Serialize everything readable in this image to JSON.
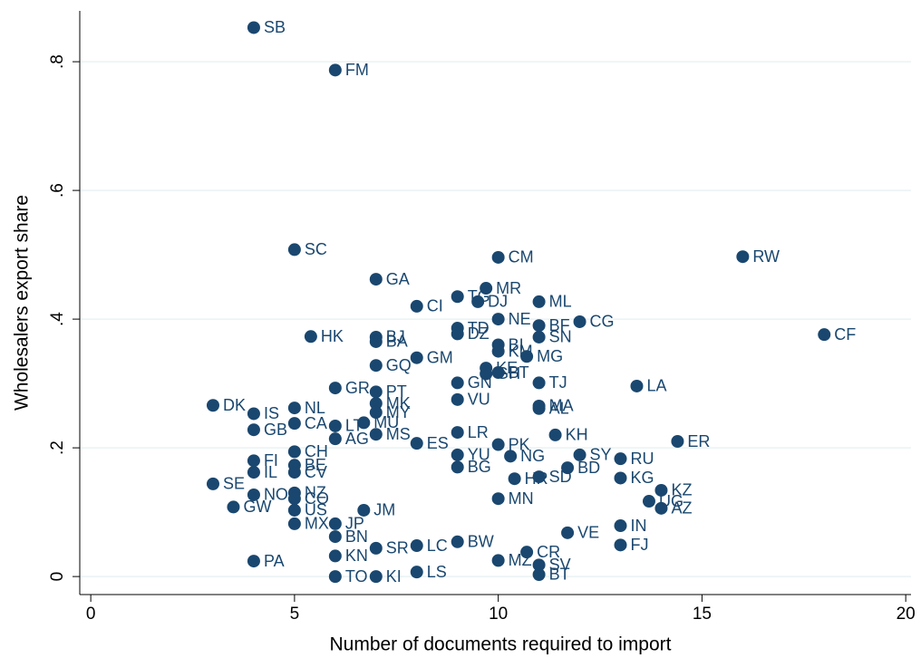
{
  "chart_data": {
    "type": "scatter",
    "x_label": "Number of documents required to import",
    "y_label": "Wholesalers export share",
    "color": "#1a476f",
    "grid": true,
    "xlim": [
      -0.27,
      20.13
    ],
    "ylim": [
      -0.028,
      0.879
    ],
    "xticks": [
      0,
      5,
      10,
      15,
      20
    ],
    "yticks": [
      0,
      {
        "value": 0.2,
        "label": ".2"
      },
      {
        "value": 0.4,
        "label": ".4"
      },
      {
        "value": 0.6,
        "label": ".6"
      },
      {
        "value": 0.8,
        "label": ".8"
      }
    ],
    "labels": [
      "SB",
      "FM",
      "SC",
      "CM",
      "RW",
      "GA",
      "MR",
      "TG",
      "CI",
      "DJ",
      "ML",
      "NE",
      "CG",
      "BF",
      "TD",
      "DZ",
      "CF",
      "HK",
      "BJ",
      "SN",
      "BA",
      "BI",
      "KM",
      "MG",
      "GM",
      "GQ",
      "KE",
      "GH",
      "BT",
      "GN",
      "TJ",
      "LA",
      "GR",
      "PT",
      "VU",
      "DK",
      "MK",
      "MA",
      "AL",
      "NL",
      "IS",
      "MY",
      "MU",
      "LT",
      "CA",
      "GB",
      "LR",
      "KH",
      "MS",
      "AG",
      "ER",
      "ES",
      "PK",
      "SY",
      "RU",
      "YU",
      "NG",
      "CH",
      "FI",
      "BE",
      "BD",
      "BG",
      "KG",
      "SE",
      "CV",
      "IL",
      "HR",
      "SD",
      "KZ",
      "UG",
      "AZ",
      "NZ",
      "NO",
      "CO",
      "GW",
      "US",
      "JM",
      "MN",
      "IN",
      "FJ",
      "MX",
      "JP",
      "BN",
      "KN",
      "SR",
      "LC",
      "BW",
      "VE",
      "CR",
      "MZ",
      "SV",
      "BT",
      "PA",
      "TO",
      "KI",
      "LS"
    ],
    "x": [
      4,
      6,
      5,
      10,
      16,
      7,
      9.7,
      9,
      8,
      9.5,
      11,
      10,
      12,
      11,
      9,
      9,
      18,
      5.4,
      7,
      11,
      7,
      10,
      10,
      10.7,
      8,
      7,
      9.7,
      9.7,
      10,
      9,
      11,
      13.4,
      6,
      7,
      9,
      3,
      7,
      11,
      11,
      5,
      4,
      7,
      6.7,
      6,
      5,
      4,
      9,
      11.4,
      7,
      6,
      14.4,
      8,
      10,
      12,
      13,
      9,
      10.3,
      5,
      4,
      5,
      11.7,
      9,
      13,
      3,
      5,
      4,
      10.4,
      11,
      14,
      13.7,
      14,
      5,
      4,
      5,
      3.5,
      5,
      6.7,
      10,
      13,
      13,
      5,
      6,
      6,
      6,
      7,
      8,
      9,
      11.7,
      10.7,
      10,
      11,
      11,
      4,
      6,
      7,
      8
    ],
    "values": [
      0.853,
      0.787,
      0.508,
      0.496,
      0.497,
      0.462,
      0.448,
      0.435,
      0.42,
      0.427,
      0.427,
      0.4,
      0.396,
      0.39,
      0.386,
      0.377,
      0.376,
      0.373,
      0.372,
      0.372,
      0.365,
      0.36,
      0.35,
      0.342,
      0.34,
      0.328,
      0.324,
      0.315,
      0.317,
      0.301,
      0.301,
      0.296,
      0.293,
      0.287,
      0.275,
      0.266,
      0.269,
      0.265,
      0.261,
      0.262,
      0.253,
      0.255,
      0.239,
      0.234,
      0.238,
      0.228,
      0.224,
      0.22,
      0.221,
      0.214,
      0.21,
      0.207,
      0.205,
      0.189,
      0.183,
      0.189,
      0.187,
      0.194,
      0.18,
      0.173,
      0.169,
      0.17,
      0.153,
      0.144,
      0.162,
      0.162,
      0.152,
      0.155,
      0.134,
      0.117,
      0.106,
      0.13,
      0.127,
      0.121,
      0.108,
      0.103,
      0.103,
      0.121,
      0.079,
      0.049,
      0.082,
      0.082,
      0.062,
      0.032,
      0.044,
      0.048,
      0.054,
      0.068,
      0.038,
      0.025,
      0.018,
      0.003,
      0.024,
      0,
      0,
      0.007
    ]
  }
}
